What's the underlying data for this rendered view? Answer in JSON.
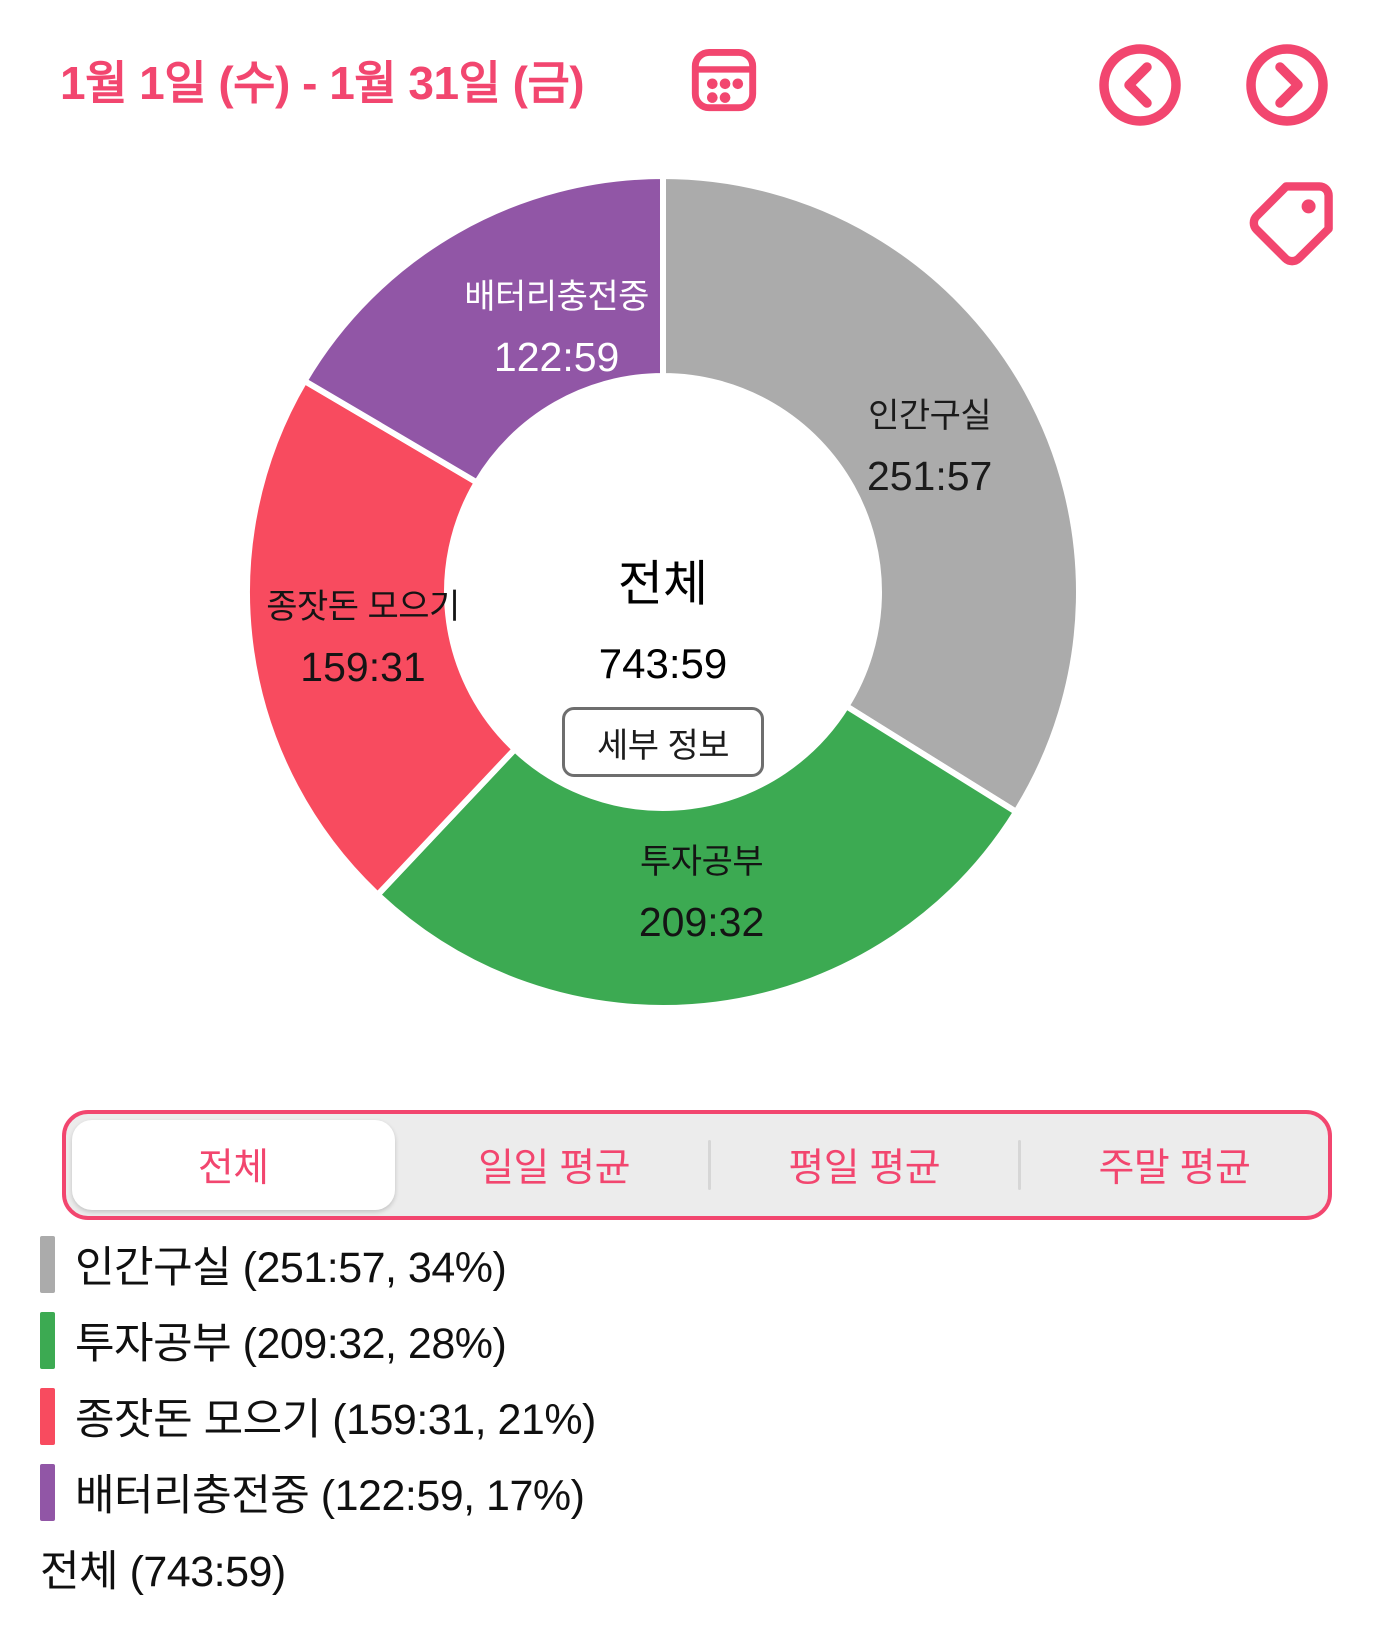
{
  "accent_color": "#f2466f",
  "header": {
    "date_range": "1월 1일 (수) - 1월 31일 (금)"
  },
  "chart_data": {
    "type": "pie",
    "subtype": "donut",
    "title": "전체",
    "direction": "clockwise",
    "start_angle_deg": 0,
    "total_minutes": 44639,
    "center": {
      "title": "전체",
      "total_time": "743:59",
      "detail_button_label": "세부 정보"
    },
    "segments": [
      {
        "label": "인간구실",
        "time": "251:57",
        "percent": 34,
        "color": "#ababab",
        "label_color": "#1b1b1b"
      },
      {
        "label": "투자공부",
        "time": "209:32",
        "percent": 28,
        "color": "#3caa52",
        "label_color": "#141414"
      },
      {
        "label": "종잣돈 모으기",
        "time": "159:31",
        "percent": 21,
        "color": "#f84b5f",
        "label_color": "#141414"
      },
      {
        "label": "배터리충전중",
        "time": "122:59",
        "percent": 17,
        "color": "#9156a6",
        "label_color": "#ffffff"
      }
    ]
  },
  "tabs": {
    "items": [
      "전체",
      "일일 평균",
      "평일 평균",
      "주말 평균"
    ],
    "selected": "전체"
  },
  "legend": {
    "total": {
      "label": "전체",
      "time": "743:59"
    }
  }
}
